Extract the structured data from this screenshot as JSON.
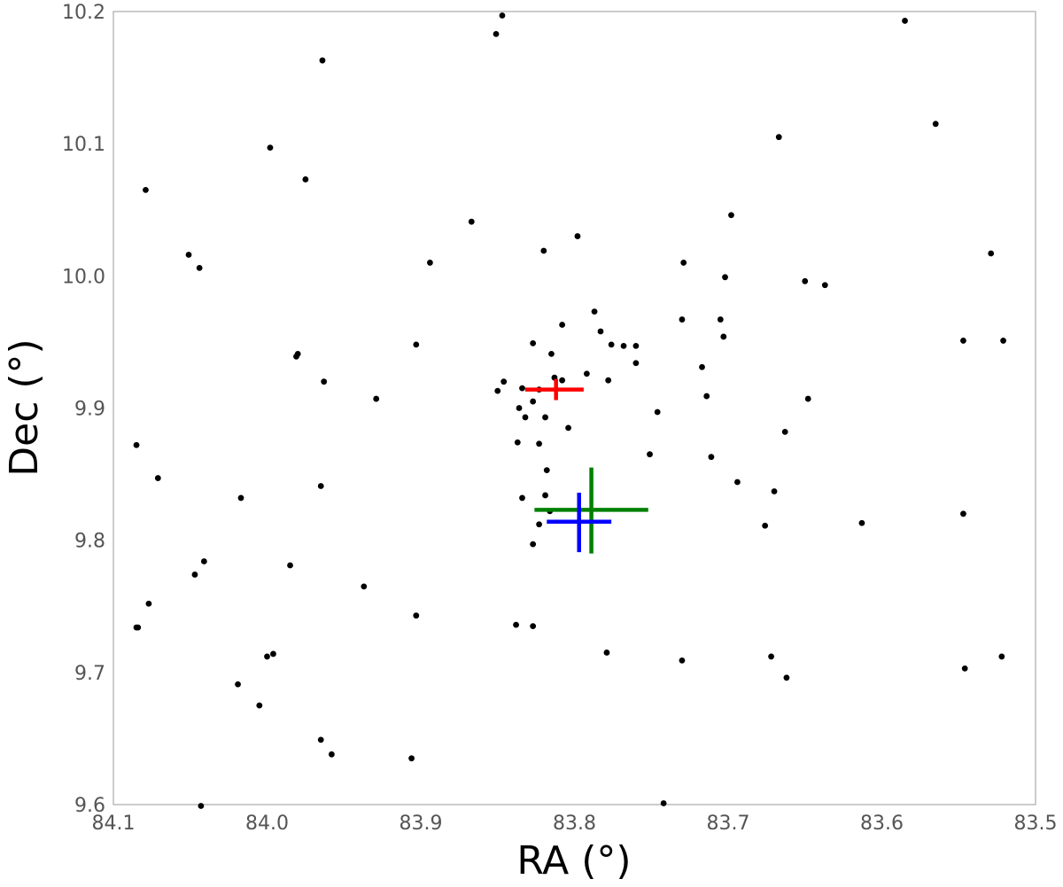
{
  "chart_data": {
    "type": "scatter",
    "title": "",
    "xlabel": "RA (°)",
    "ylabel": "Dec (°)",
    "xlim": [
      84.1,
      83.5
    ],
    "ylim": [
      9.6,
      10.2
    ],
    "x_inverted": true,
    "grid": false,
    "x_ticks": [
      "84.1",
      "84.0",
      "83.9",
      "83.8",
      "83.7",
      "83.6",
      "83.5"
    ],
    "y_ticks": [
      "9.6",
      "9.7",
      "9.8",
      "9.9",
      "10.0",
      "10.1",
      "10.2"
    ],
    "series": [
      {
        "marker": "dot",
        "color": "#000000",
        "points": [
          [
            83.847,
            10.197
          ],
          [
            83.851,
            10.183
          ],
          [
            83.585,
            10.193
          ],
          [
            83.964,
            10.163
          ],
          [
            83.565,
            10.115
          ],
          [
            83.667,
            10.105
          ],
          [
            84.079,
            10.065
          ],
          [
            83.998,
            10.097
          ],
          [
            83.975,
            10.073
          ],
          [
            83.867,
            10.041
          ],
          [
            83.698,
            10.046
          ],
          [
            83.798,
            10.03
          ],
          [
            84.051,
            10.016
          ],
          [
            83.82,
            10.019
          ],
          [
            83.529,
            10.017
          ],
          [
            84.044,
            10.006
          ],
          [
            83.894,
            10.01
          ],
          [
            83.729,
            10.01
          ],
          [
            83.702,
            9.999
          ],
          [
            83.65,
            9.996
          ],
          [
            83.637,
            9.993
          ],
          [
            83.787,
            9.973
          ],
          [
            83.808,
            9.963
          ],
          [
            83.73,
            9.967
          ],
          [
            83.705,
            9.967
          ],
          [
            83.703,
            9.954
          ],
          [
            83.547,
            9.951
          ],
          [
            83.521,
            9.951
          ],
          [
            83.903,
            9.948
          ],
          [
            83.783,
            9.958
          ],
          [
            83.776,
            9.948
          ],
          [
            83.768,
            9.947
          ],
          [
            83.827,
            9.949
          ],
          [
            83.815,
            9.941
          ],
          [
            83.98,
            9.941
          ],
          [
            83.981,
            9.939
          ],
          [
            83.963,
            9.92
          ],
          [
            83.846,
            9.92
          ],
          [
            83.813,
            9.923
          ],
          [
            83.808,
            9.921
          ],
          [
            83.792,
            9.926
          ],
          [
            83.778,
            9.921
          ],
          [
            83.76,
            9.947
          ],
          [
            83.76,
            9.934
          ],
          [
            83.717,
            9.931
          ],
          [
            83.929,
            9.907
          ],
          [
            83.85,
            9.913
          ],
          [
            83.834,
            9.915
          ],
          [
            83.823,
            9.914
          ],
          [
            83.714,
            9.909
          ],
          [
            83.648,
            9.907
          ],
          [
            83.836,
            9.9
          ],
          [
            83.827,
            9.905
          ],
          [
            83.832,
            9.893
          ],
          [
            83.819,
            9.893
          ],
          [
            83.746,
            9.897
          ],
          [
            83.663,
            9.882
          ],
          [
            83.837,
            9.874
          ],
          [
            83.823,
            9.873
          ],
          [
            83.804,
            9.885
          ],
          [
            84.085,
            9.872
          ],
          [
            83.751,
            9.865
          ],
          [
            83.711,
            9.863
          ],
          [
            83.818,
            9.853
          ],
          [
            84.071,
            9.847
          ],
          [
            83.965,
            9.841
          ],
          [
            83.694,
            9.844
          ],
          [
            83.67,
            9.837
          ],
          [
            83.834,
            9.832
          ],
          [
            83.819,
            9.834
          ],
          [
            83.816,
            9.822
          ],
          [
            84.017,
            9.832
          ],
          [
            83.676,
            9.811
          ],
          [
            83.613,
            9.813
          ],
          [
            83.547,
            9.82
          ],
          [
            83.823,
            9.812
          ],
          [
            83.827,
            9.797
          ],
          [
            84.041,
            9.784
          ],
          [
            83.985,
            9.781
          ],
          [
            84.047,
            9.774
          ],
          [
            83.937,
            9.765
          ],
          [
            84.077,
            9.752
          ],
          [
            83.903,
            9.743
          ],
          [
            84.085,
            9.734
          ],
          [
            84.084,
            9.734
          ],
          [
            83.838,
            9.736
          ],
          [
            83.827,
            9.735
          ],
          [
            83.779,
            9.715
          ],
          [
            83.73,
            9.709
          ],
          [
            83.672,
            9.712
          ],
          [
            83.522,
            9.712
          ],
          [
            84.0,
            9.712
          ],
          [
            83.996,
            9.714
          ],
          [
            84.019,
            9.691
          ],
          [
            83.546,
            9.703
          ],
          [
            83.662,
            9.696
          ],
          [
            84.005,
            9.675
          ],
          [
            83.965,
            9.649
          ],
          [
            83.958,
            9.638
          ],
          [
            83.906,
            9.635
          ],
          [
            84.043,
            9.599
          ],
          [
            83.742,
            9.601
          ]
        ]
      },
      {
        "marker": "crosshair",
        "color": "#ff0000",
        "center": [
          83.812,
          9.914
        ],
        "x_extent": [
          83.794,
          83.832
        ],
        "y_extent": [
          9.906,
          9.922
        ]
      },
      {
        "marker": "crosshair",
        "color": "#008000",
        "center": [
          83.789,
          9.823
        ],
        "x_extent": [
          83.752,
          83.826
        ],
        "y_extent": [
          9.79,
          9.855
        ]
      },
      {
        "marker": "crosshair",
        "color": "#0000ff",
        "center": [
          83.797,
          9.814
        ],
        "x_extent": [
          83.776,
          83.818
        ],
        "y_extent": [
          9.791,
          9.836
        ]
      }
    ]
  }
}
